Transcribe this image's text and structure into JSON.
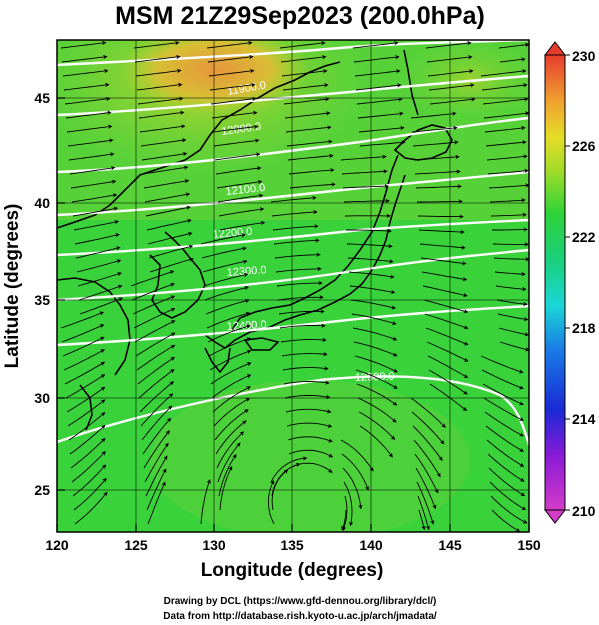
{
  "title": "MSM 21Z29Sep2023 (200.0hPa)",
  "xlabel": "Longitude (degrees)",
  "ylabel": "Latitude  (degrees)",
  "credits": [
    "Drawing by DCL (https://www.gfd-dennou.org/library/dcl/)",
    "Data from http://database.rish.kyoto-u.ac.jp/arch/jmadata/"
  ],
  "map": {
    "lon_range": [
      120,
      150
    ],
    "lat_range": [
      22.4,
      47.6
    ],
    "x_ticks": [
      "120",
      "125",
      "130",
      "135",
      "140",
      "145",
      "150"
    ],
    "y_ticks": [
      "25",
      "30",
      "35",
      "40",
      "45"
    ],
    "field": "temperature (K) shading with geopotential height contours and wind streamlines",
    "contour_labels": [
      "11900.0",
      "12000.0",
      "12100.0",
      "12200.0",
      "12300.0",
      "12400.0",
      "12500.0"
    ],
    "colors": {
      "background_green": "#3ad23a",
      "warm_yellow": "#c8d22a",
      "warm_orange": "#e6a03c",
      "contour": "#ffffff",
      "streamline": "#000000"
    }
  },
  "colorbar": {
    "min": 210,
    "max": 230,
    "ticks": [
      "230",
      "226",
      "222",
      "218",
      "214",
      "210"
    ]
  }
}
